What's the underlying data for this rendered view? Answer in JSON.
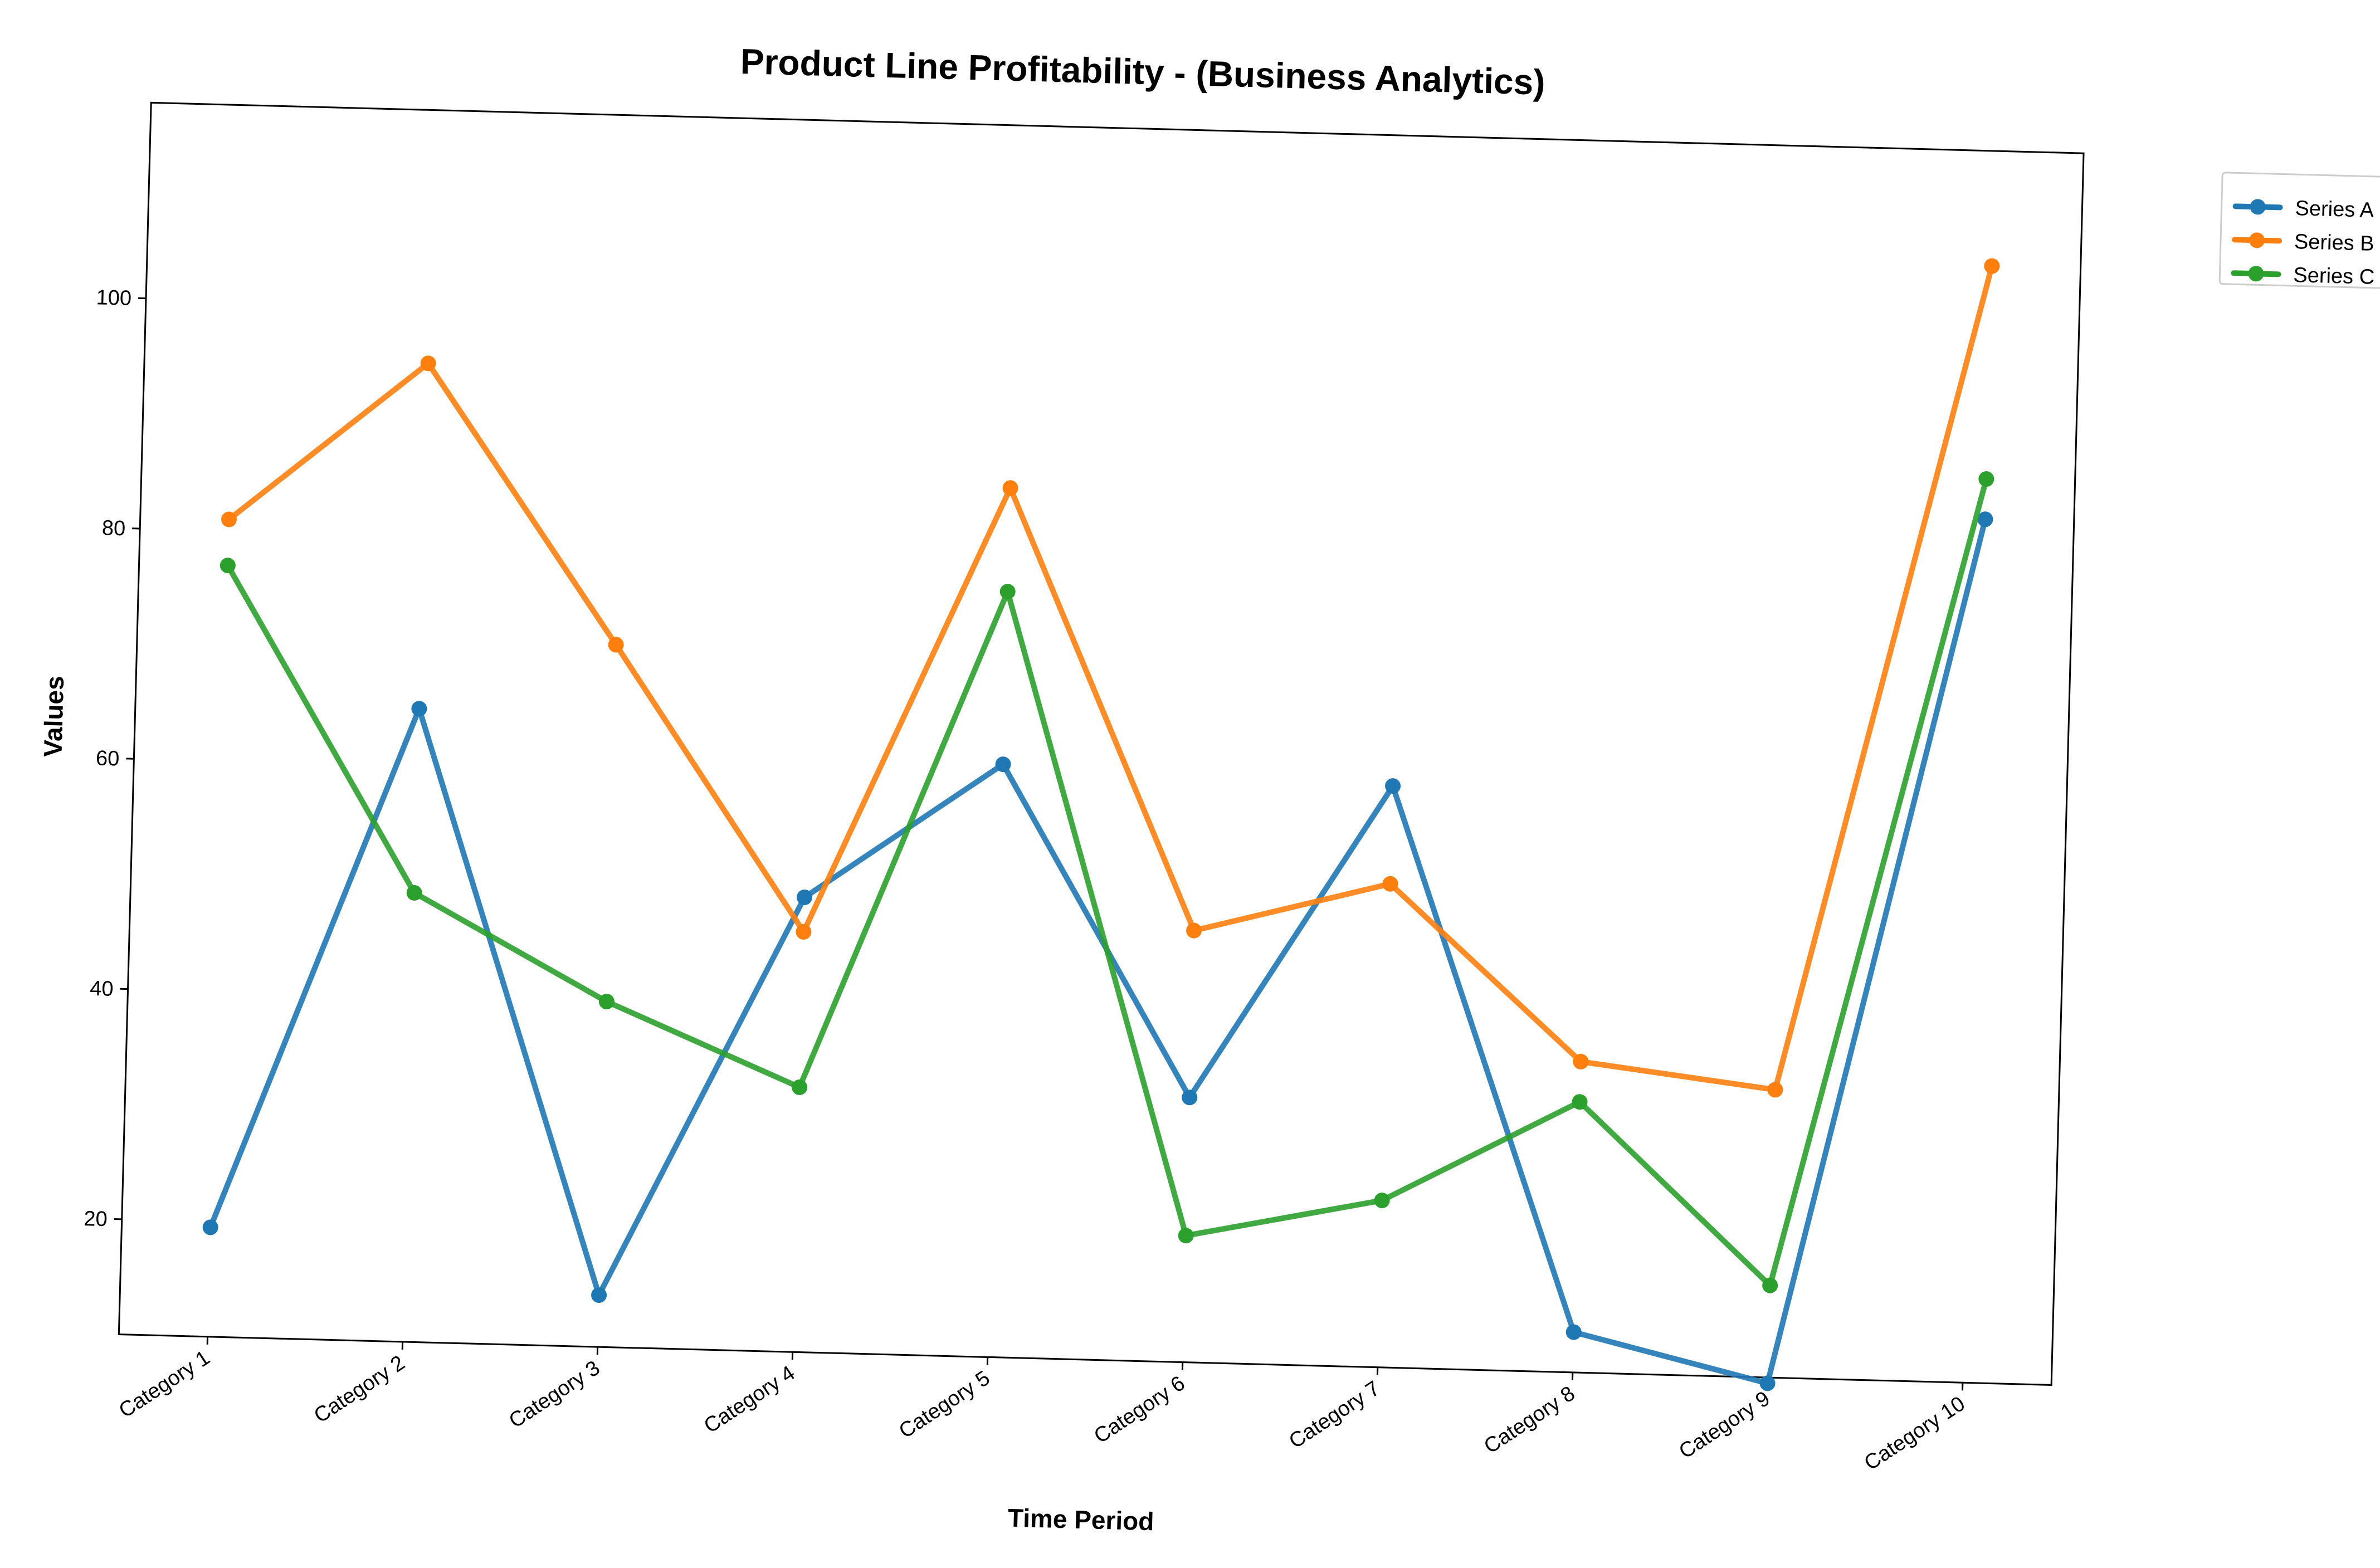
{
  "chart_data": {
    "type": "line",
    "title": "Product Line Profitability - (Business Analytics)",
    "xlabel": "Time Period",
    "ylabel": "Values",
    "categories": [
      "Category 1",
      "Category 2",
      "Category 3",
      "Category 4",
      "Category 5",
      "Category 6",
      "Category 7",
      "Category 8",
      "Category 9",
      "Category 10"
    ],
    "ylim": [
      10,
      117
    ],
    "yticks": [
      20,
      40,
      60,
      80,
      100
    ],
    "grid": false,
    "legend_position": "top-right, outside plot",
    "series": [
      {
        "name": "Series A",
        "color": "#1f77b4",
        "values": [
          19.5,
          65,
          14.5,
          49.5,
          61.5,
          33,
          60.5,
          13.5,
          9.5,
          85
        ]
      },
      {
        "name": "Series B",
        "color": "#ff7f0e",
        "values": [
          81,
          95,
          71,
          46.5,
          85.5,
          47.5,
          52,
          37,
          35,
          107
        ]
      },
      {
        "name": "Series C",
        "color": "#2ca02c",
        "values": [
          77,
          49,
          40,
          33,
          76.5,
          21,
          24.5,
          33.5,
          18,
          88.5
        ]
      }
    ]
  }
}
